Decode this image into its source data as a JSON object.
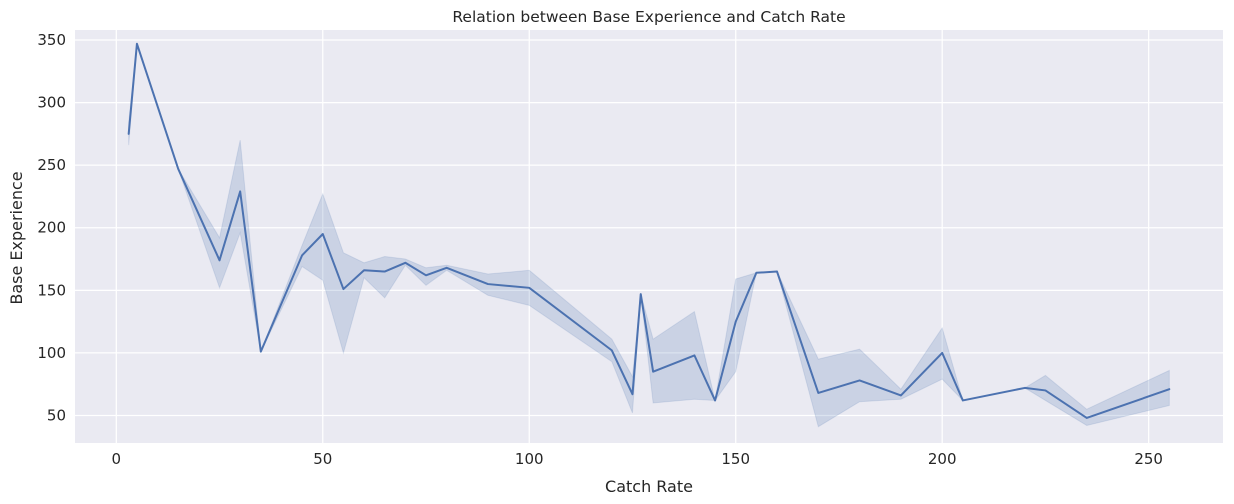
{
  "chart_data": {
    "type": "line",
    "title": "Relation between Base Experience and Catch Rate",
    "xlabel": "Catch Rate",
    "ylabel": "Base Experience",
    "xlim": [
      -10,
      268
    ],
    "ylim": [
      28,
      358
    ],
    "x_ticks": [
      0,
      50,
      100,
      150,
      200,
      250
    ],
    "y_ticks": [
      50,
      100,
      150,
      200,
      250,
      300,
      350
    ],
    "grid": true,
    "colors": {
      "background": "#eaeaf2",
      "grid": "#ffffff",
      "line": "#4c72b0",
      "band": "#4c72b0"
    },
    "series": [
      {
        "x": [
          3,
          5,
          15,
          25,
          30,
          35,
          45,
          50,
          55,
          60,
          65,
          70,
          75,
          80,
          90,
          100,
          120,
          125,
          127,
          130,
          140,
          145,
          150,
          155,
          160,
          170,
          180,
          190,
          200,
          205,
          220,
          225,
          235,
          255
        ],
        "y": [
          275,
          347,
          247,
          174,
          229,
          101,
          178,
          195,
          151,
          166,
          165,
          172,
          162,
          168,
          155,
          152,
          102,
          67,
          147,
          85,
          98,
          62,
          125,
          164,
          165,
          68,
          78,
          66,
          100,
          62,
          72,
          70,
          48,
          71
        ],
        "ci_low": [
          266,
          347,
          247,
          152,
          196,
          101,
          169,
          158,
          100,
          160,
          144,
          170,
          154,
          166,
          146,
          138,
          93,
          52,
          147,
          60,
          63,
          62,
          85,
          164,
          165,
          41,
          61,
          63,
          79,
          62,
          72,
          62,
          42,
          58
        ],
        "ci_high": [
          284,
          347,
          247,
          192,
          270,
          101,
          186,
          227,
          180,
          172,
          177,
          175,
          168,
          170,
          163,
          166,
          111,
          81,
          147,
          111,
          133,
          62,
          159,
          164,
          165,
          95,
          103,
          71,
          120,
          62,
          72,
          82,
          55,
          86
        ]
      }
    ]
  }
}
